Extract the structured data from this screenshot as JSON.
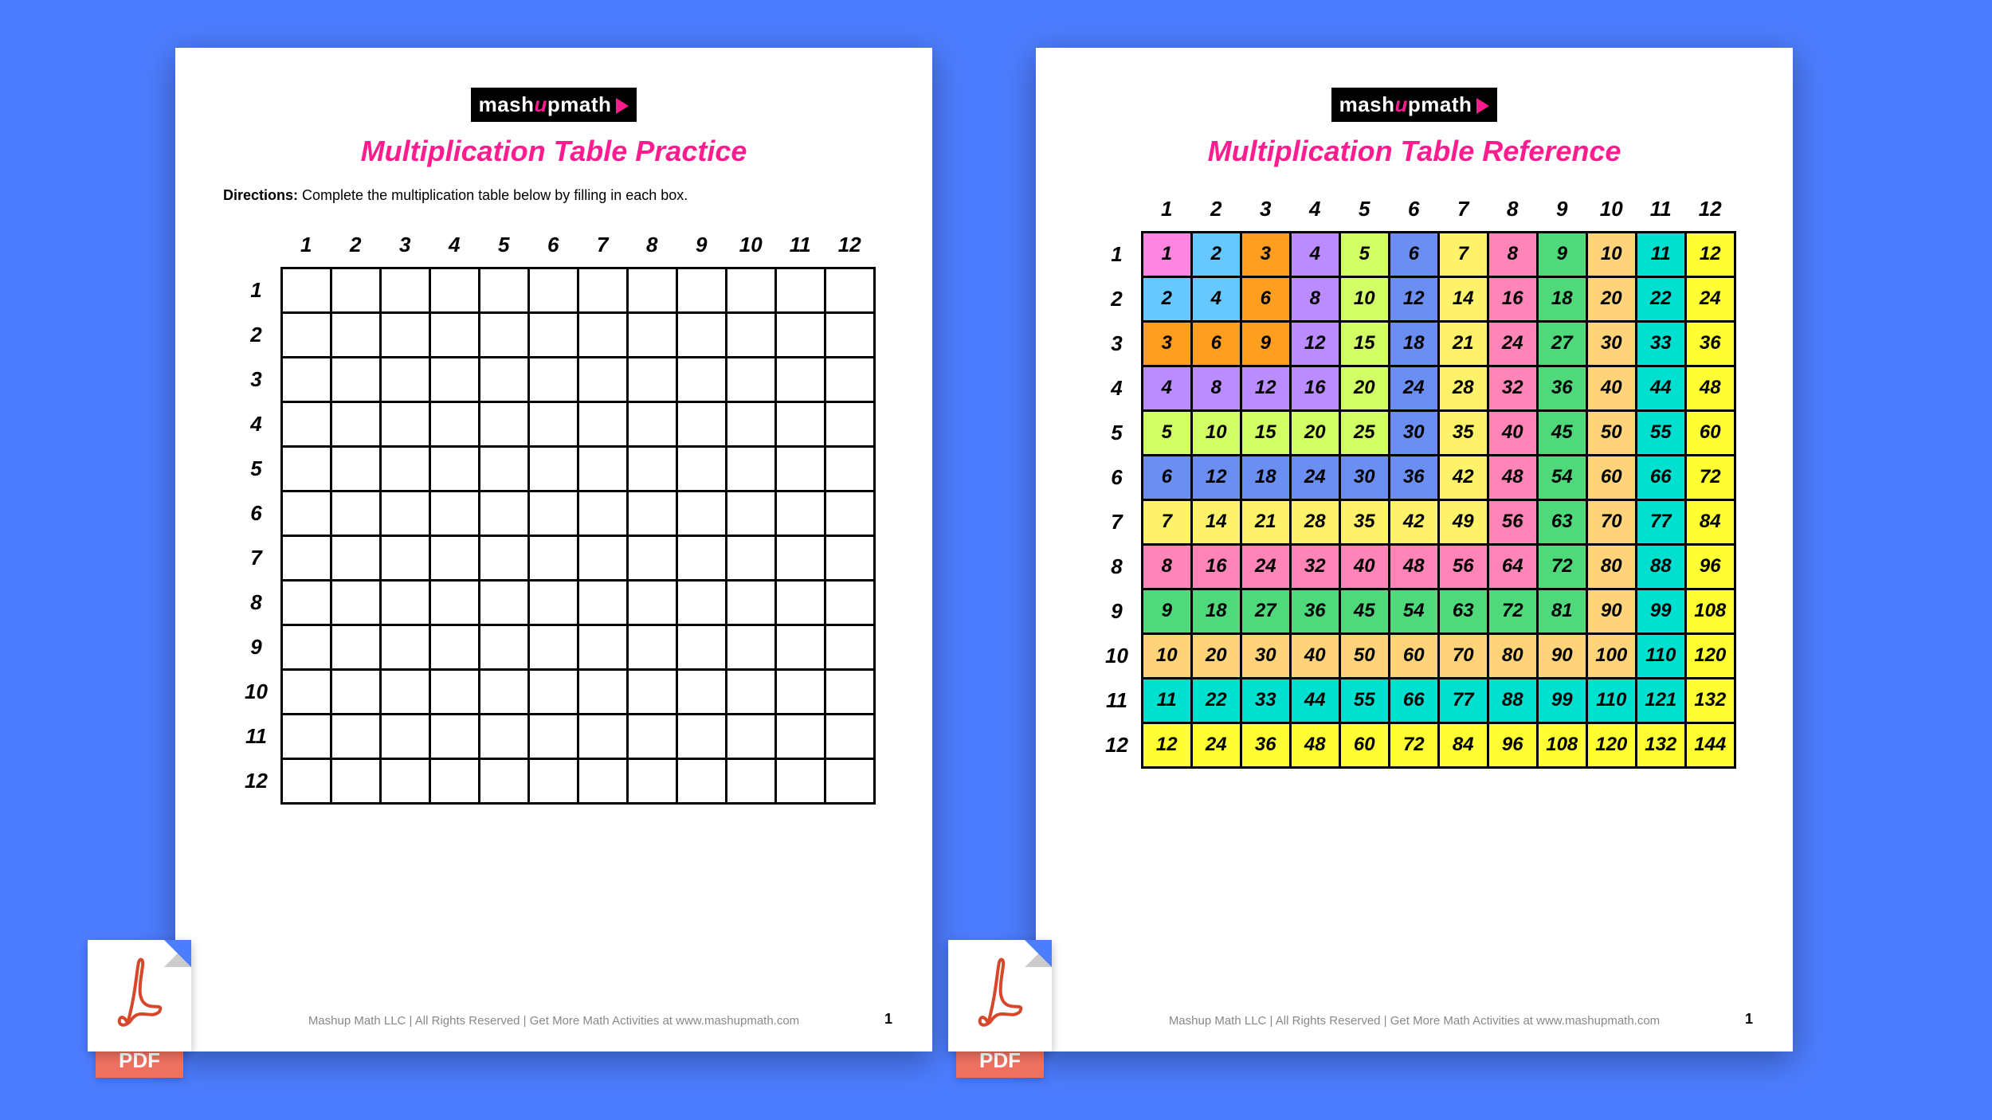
{
  "background_color": "#4d7dff",
  "page_color": "#ffffff",
  "logo": {
    "text_left": "mash",
    "text_u": "u",
    "text_right": "p",
    "text_math": "math"
  },
  "title_color": "#ff1c8f",
  "left": {
    "title": "Multiplication Table Practice",
    "directions_label": "Directions:",
    "directions_text": " Complete the multiplication table below by filling in each box."
  },
  "right": {
    "title": "Multiplication Table Reference"
  },
  "headers": [
    "1",
    "2",
    "3",
    "4",
    "5",
    "6",
    "7",
    "8",
    "9",
    "10",
    "11",
    "12"
  ],
  "cell_colors": {
    "1": "#ff85e0",
    "2": "#67c8ff",
    "3": "#ff9e1f",
    "4": "#bb8cff",
    "5": "#d3ff66",
    "6": "#6b8ef2",
    "7": "#fff26b",
    "8": "#ff85b8",
    "9": "#4fd97b",
    "10": "#ffd37a",
    "11": "#00e0d0",
    "12": "#ffff33"
  },
  "grid_border_color": "#000000",
  "footer_text": "Mashup Math LLC | All Rights Reserved | Get More Math Activities at www.mashupmath.com",
  "page_number": "1",
  "pdf_label": "PDF",
  "pdf_label_bg": "#ed7161",
  "pdf_swirl_color": "#d9472b"
}
